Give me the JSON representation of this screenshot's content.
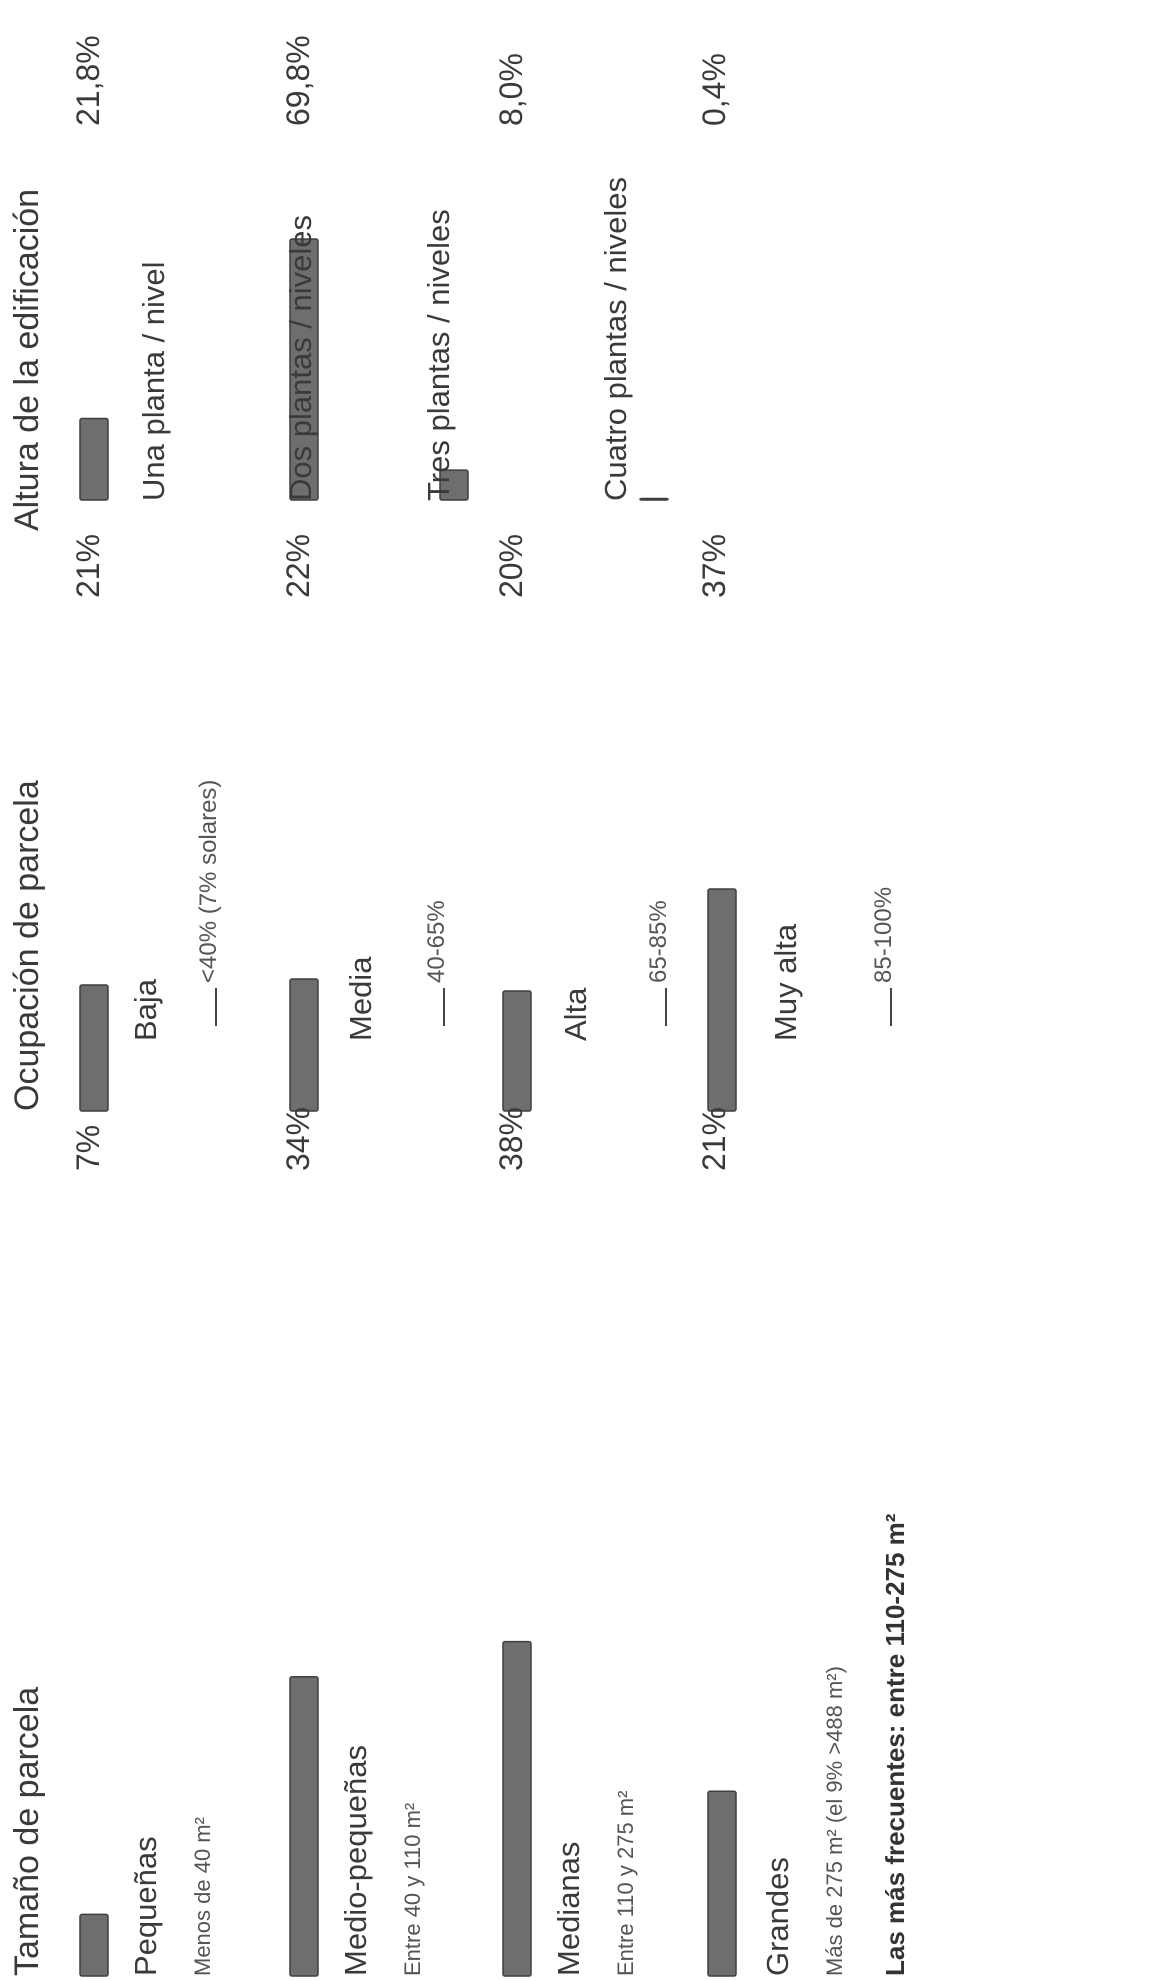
{
  "chart_data": [
    {
      "type": "bar",
      "title": "Tamaño de parcela",
      "categories": [
        "Pequeñas",
        "Medio-pequeñas",
        "Medianas",
        "Grandes"
      ],
      "descriptions": [
        "Menos de 40 m²",
        "Entre 40 y 110 m²",
        "Entre 110 y 275 m²",
        "Más de 275 m² (el 9% >488 m²)"
      ],
      "values": [
        7,
        34,
        38,
        21
      ],
      "value_labels": [
        "7%",
        "34%",
        "38%",
        "21%"
      ],
      "bar_color": "#6e6e6e",
      "note": "Las más frecuentes: entre 110-275 m²"
    },
    {
      "type": "bar",
      "title": "Ocupación de parcela",
      "categories": [
        "Baja",
        "Media",
        "Alta",
        "Muy alta"
      ],
      "descriptions": [
        "<40% (7% solares)",
        "40-65%",
        "65-85%",
        "85-100%"
      ],
      "values": [
        21,
        22,
        20,
        37
      ],
      "value_labels": [
        "21%",
        "22%",
        "20%",
        "37%"
      ],
      "bar_color": "#6e6e6e"
    },
    {
      "type": "bar",
      "title": "Altura de la edificación",
      "categories": [
        "Una planta / nivel",
        "Dos plantas / niveles",
        "Tres plantas / niveles",
        "Cuatro plantas / niveles"
      ],
      "values": [
        21.8,
        69.8,
        8.0,
        0.4
      ],
      "value_labels": [
        "21,8%",
        "69,8%",
        "8,0%",
        "0,4%"
      ],
      "bar_color": "#6e6e6e"
    }
  ]
}
